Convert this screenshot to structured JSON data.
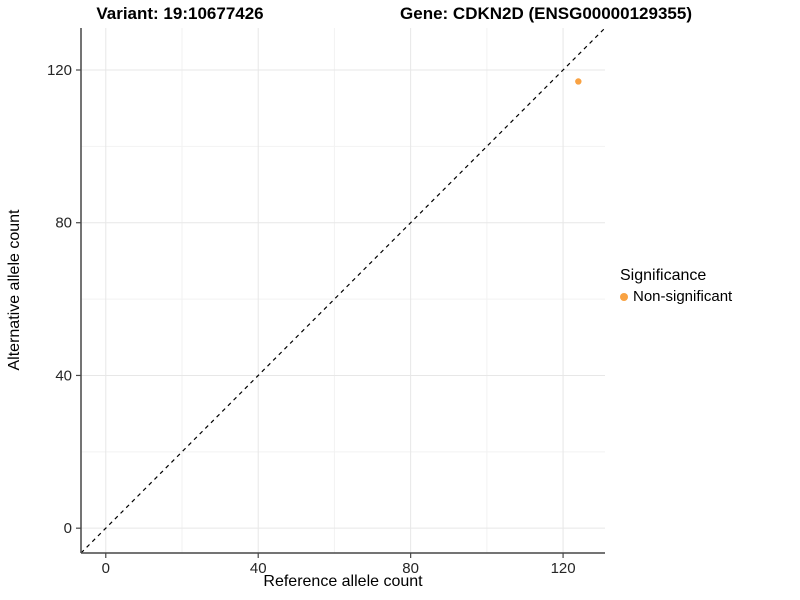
{
  "colors": {
    "point": "#F9A242",
    "grid_major": "#E7E7E7",
    "grid_minor": "#F2F2F2",
    "axis_line": "#474747",
    "tick_text": "#262626",
    "reference_line": "#000000",
    "background": "#FFFFFF"
  },
  "chart_data": {
    "type": "scatter",
    "title_left": "Variant: 19:10677426",
    "title_right": "Gene: CDKN2D (ENSG00000129355)",
    "xlabel": "Reference allele count",
    "ylabel": "Alternative allele count",
    "xlim": [
      -6.5,
      131
    ],
    "ylim": [
      -6.5,
      131
    ],
    "x_major_ticks": [
      0,
      40,
      80,
      120
    ],
    "x_minor_ticks": [
      20,
      60,
      100
    ],
    "y_major_ticks": [
      0,
      40,
      80,
      120
    ],
    "y_minor_ticks": [
      20,
      60,
      100
    ],
    "grid": true,
    "reference_line": {
      "style": "dashed",
      "from": [
        -6.5,
        -6.5
      ],
      "to": [
        131,
        131
      ],
      "color": "#000000"
    },
    "series": [
      {
        "name": "Non-significant",
        "color": "#F9A242",
        "points": [
          {
            "x": 124,
            "y": 117
          }
        ]
      }
    ],
    "legend": {
      "title": "Significance",
      "position": "right",
      "items": [
        {
          "label": "Non-significant",
          "color": "#F9A242"
        }
      ]
    }
  }
}
